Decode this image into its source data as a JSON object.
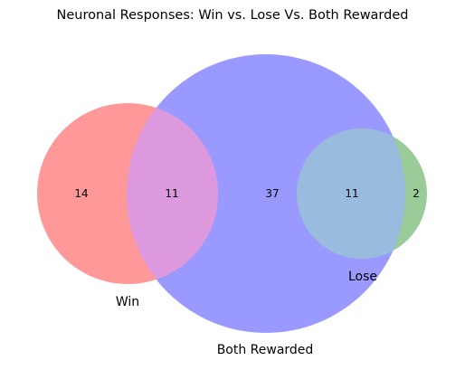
{
  "title": "Neuronal Responses: Win vs. Lose Vs. Both Rewarded",
  "sets": {
    "win": {
      "label": "Win",
      "color": "#ff9999"
    },
    "both": {
      "label": "Both Rewarded",
      "color": "#9999ff"
    },
    "lose": {
      "label": "Lose",
      "color": "#99cc99"
    }
  },
  "regions": {
    "win_only": "14",
    "win_both": "11",
    "both_only": "37",
    "both_lose": "11",
    "lose_only": "2"
  },
  "overlap_colors": {
    "win_both": "#dd99dd",
    "both_lose": "#99bbdd"
  }
}
